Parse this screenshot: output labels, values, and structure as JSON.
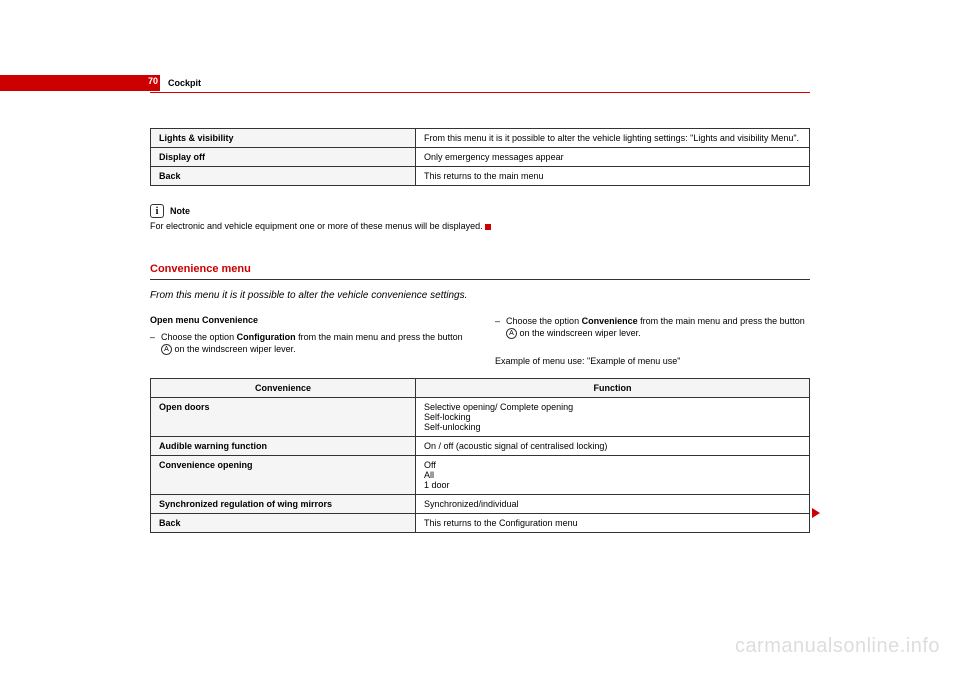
{
  "page_number": "70",
  "section_title": "Cockpit",
  "table1": {
    "rows": [
      [
        "Lights & visibility",
        "From this menu it is it possible to alter the vehicle lighting settings: \"Lights and visibility Menu\"."
      ],
      [
        "Display off",
        "Only emergency messages appear"
      ],
      [
        "Back",
        "This returns to the main menu"
      ]
    ]
  },
  "note": {
    "label": "Note",
    "text": "For electronic and vehicle equipment one or more of these menus will be displayed."
  },
  "subsection": {
    "title": "Convenience menu",
    "description": "From this menu it is it possible to alter the vehicle convenience settings.",
    "left_col": {
      "heading": "Open menu Convenience",
      "bullet_prefix": "–",
      "bullet_text_before": "Choose the option ",
      "bullet_bold": "Configuration",
      "bullet_text_after": " from the main menu and press the button ",
      "circle": "A",
      "bullet_text_end": " on the windscreen wiper lever."
    },
    "right_col": {
      "bullet_prefix": "–",
      "bullet_text_before": "Choose the option ",
      "bullet_bold": "Convenience",
      "bullet_text_after": " from the main menu and press the button ",
      "circle": "A",
      "bullet_text_end": " on the windscreen wiper lever.",
      "example_text": "Example of menu use: \"Example of menu use\""
    }
  },
  "table2": {
    "headers": [
      "Convenience",
      "Function"
    ],
    "rows": [
      [
        "Open doors",
        "Selective opening/ Complete opening\nSelf-locking\nSelf-unlocking"
      ],
      [
        "Audible warning function",
        "On / off (acoustic signal of centralised locking)"
      ],
      [
        "Convenience opening",
        "Off\nAll\n1 door"
      ],
      [
        "Synchronized regulation of wing mirrors",
        "Synchronized/individual"
      ],
      [
        "Back",
        "This returns to the Configuration menu"
      ]
    ]
  },
  "watermark": "carmanualsonline.info",
  "colors": {
    "red": "#cc0000",
    "text": "#000000",
    "border": "#333333",
    "header_bg": "#f5f5f5",
    "watermark": "#dddddd"
  }
}
